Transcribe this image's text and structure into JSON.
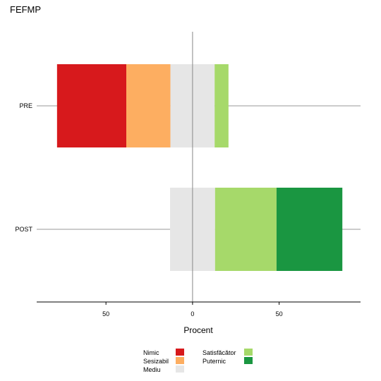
{
  "chart_data": {
    "type": "bar",
    "orientation": "horizontal",
    "stacked": "diverging",
    "title": "FEFMP",
    "xlabel": "Procent",
    "ylabel": "",
    "xlim": [
      -90,
      97
    ],
    "x_ticks": [
      -50,
      0,
      50
    ],
    "x_tick_labels": [
      "50",
      "0",
      "50"
    ],
    "categories": [
      "PRE",
      "POST"
    ],
    "series": [
      {
        "name": "Nimic",
        "color": "#D7191C",
        "values": [
          40,
          0
        ]
      },
      {
        "name": "Sesizabil",
        "color": "#FDAE61",
        "values": [
          25.5,
          0
        ]
      },
      {
        "name": "Mediu",
        "color": "#E6E6E6",
        "values": [
          25.5,
          26
        ]
      },
      {
        "name": "Satisfăcător",
        "color": "#A6D96A",
        "values": [
          8,
          35.5
        ]
      },
      {
        "name": "Puternic",
        "color": "#1A9641",
        "values": [
          0,
          38
        ]
      }
    ],
    "neutral_series": "Mediu",
    "grid": false,
    "legend_position": "bottom"
  }
}
